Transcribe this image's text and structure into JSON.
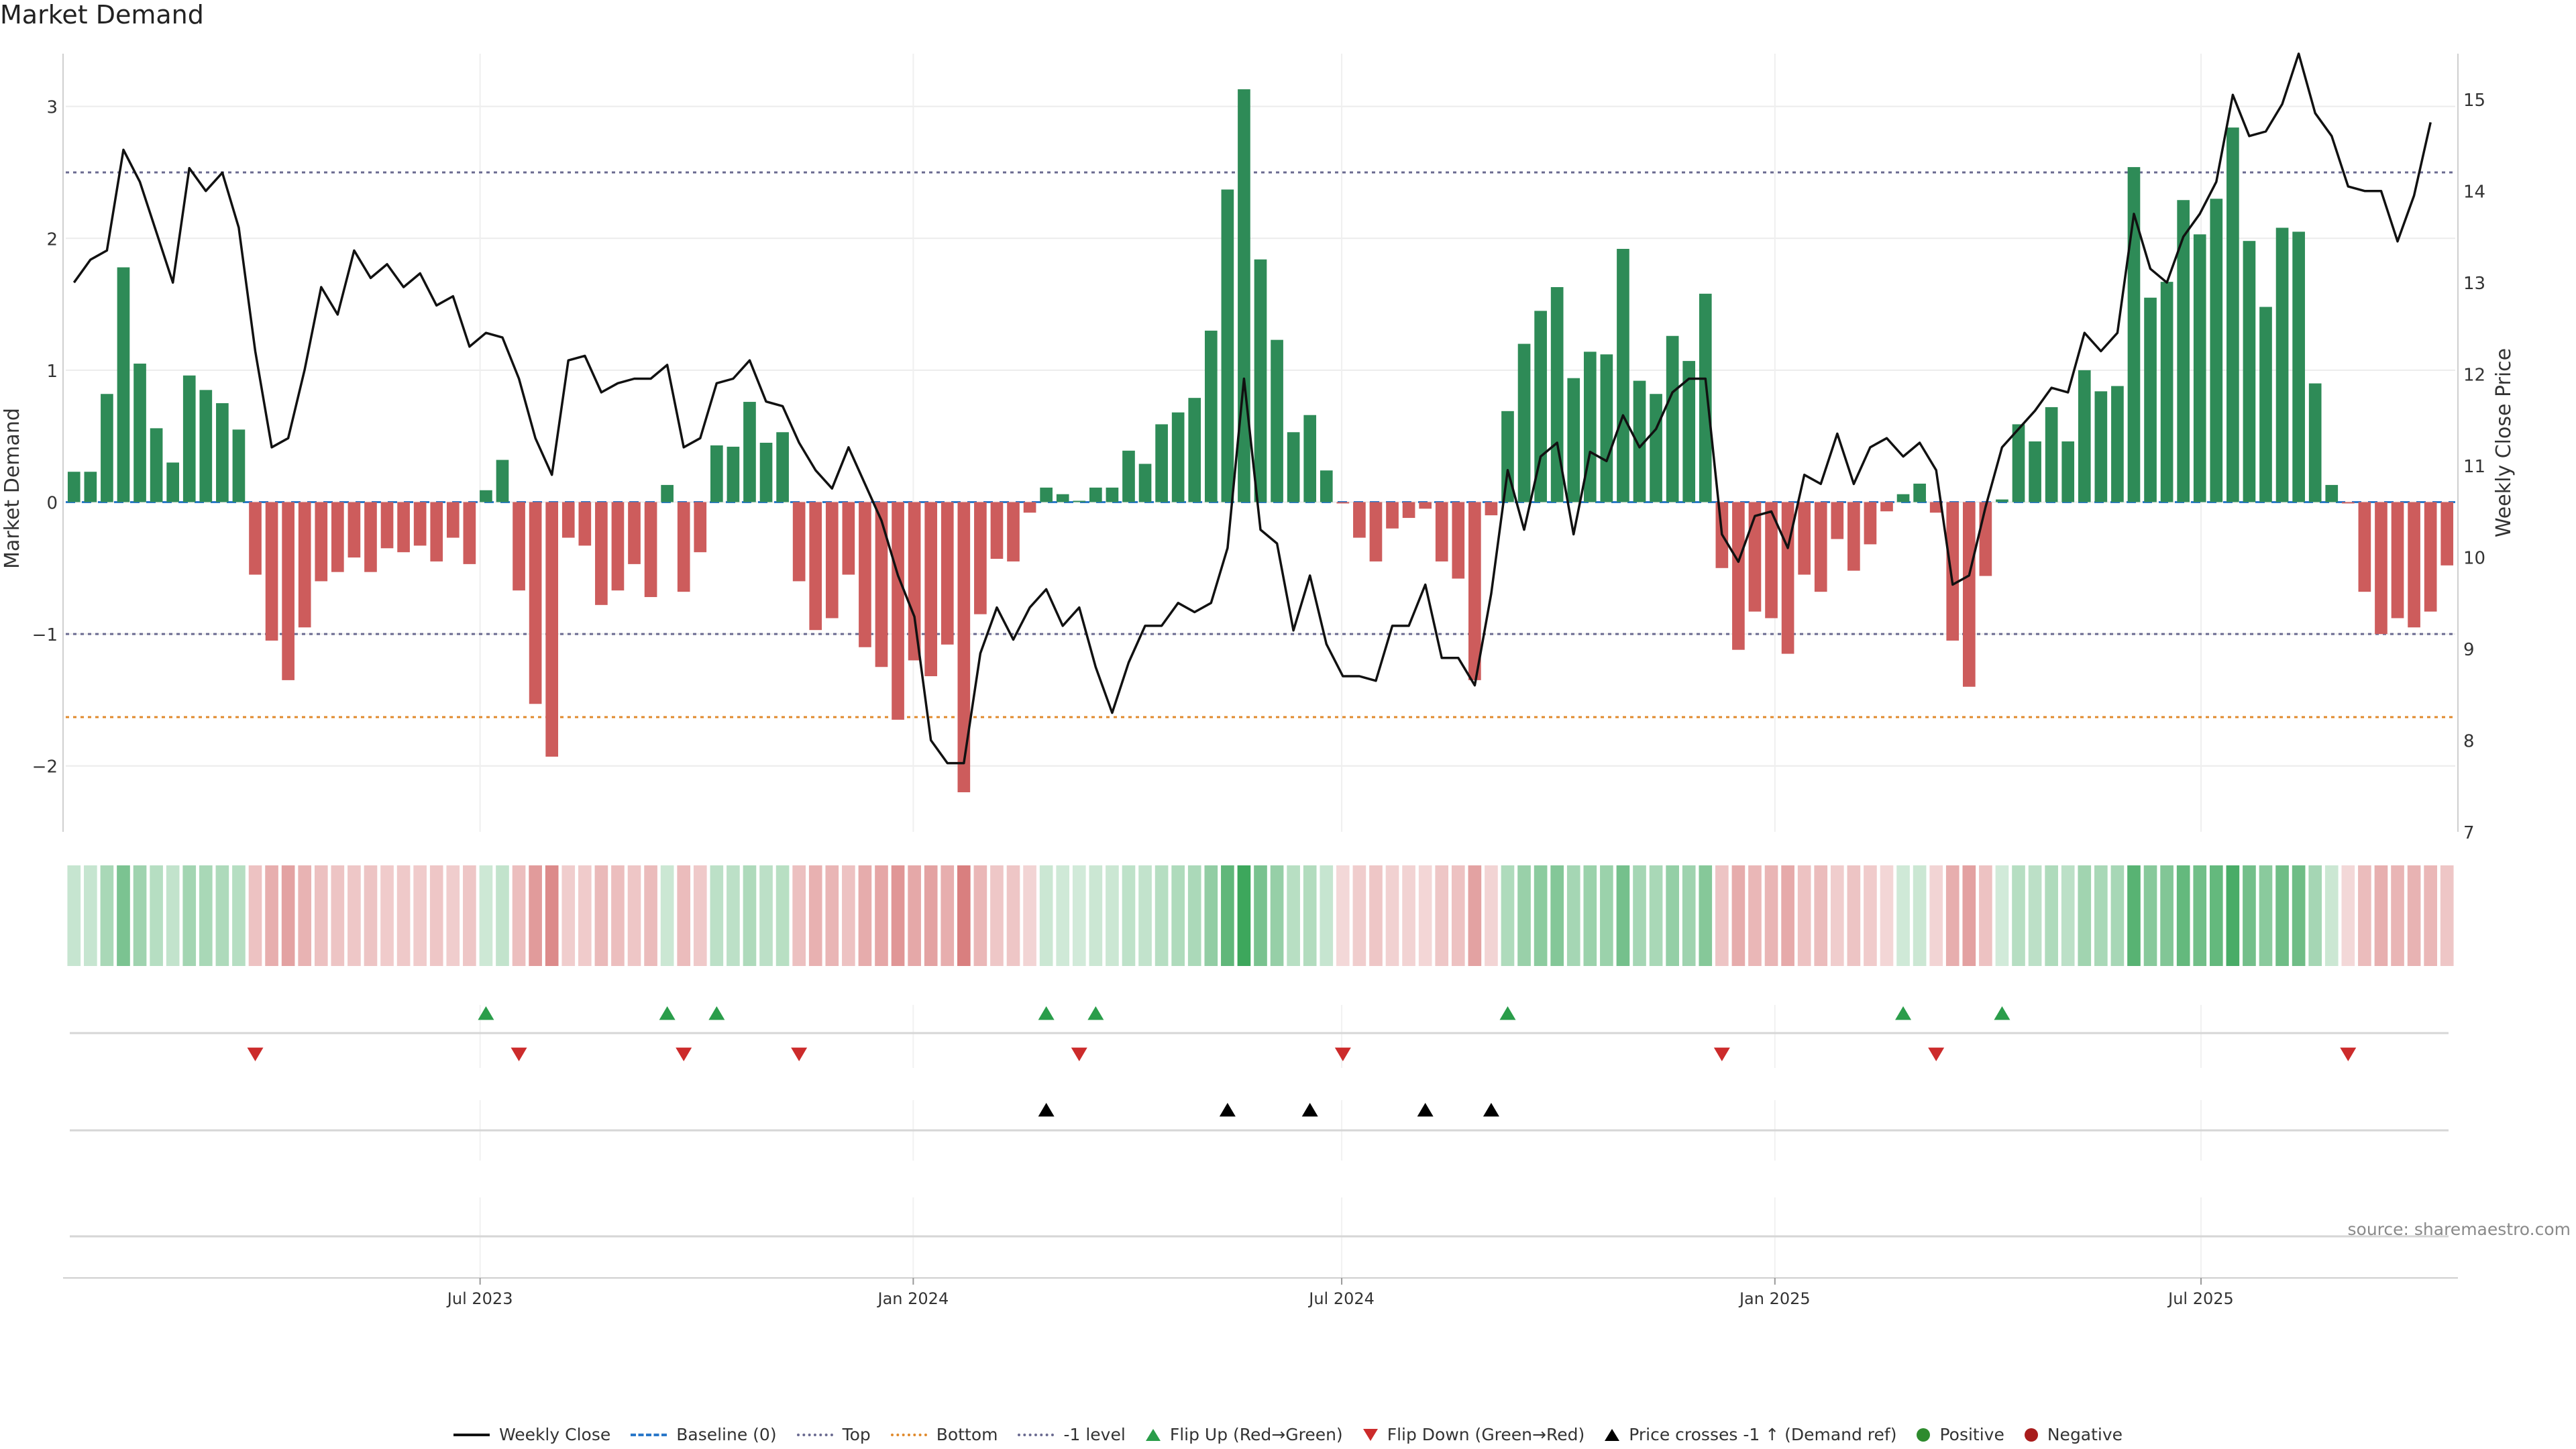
{
  "source": "source: sharemaestro.com",
  "colors": {
    "pos": "#2e8b57",
    "neg": "#cd5c5c",
    "price": "#111111",
    "top": "#6a6a90",
    "bottom": "#e08a2c",
    "baseline": "#2a78c9",
    "flip_up": "#2a9d4a",
    "flip_down": "#cc2b2b",
    "cross": "#000000",
    "positive_dot": "#2e8b2e",
    "negative_dot": "#a81c1c"
  },
  "chart_data": {
    "type": "bar",
    "title": "Market Demand",
    "ylabel": "Market Demand",
    "y2label": "Weekly Close Price",
    "ylim": [
      -2.5,
      3.4
    ],
    "y2lim": [
      7,
      15.5
    ],
    "yticks": [
      -2,
      -1,
      0,
      1,
      2,
      3
    ],
    "yticklabels": [
      "−2",
      "−1",
      "0",
      "1",
      "2",
      "3"
    ],
    "y2ticks": [
      7,
      8,
      9,
      10,
      11,
      12,
      13,
      14,
      15
    ],
    "x_start": "2023-01-06",
    "x_step_days": 7,
    "xticks": [
      {
        "date": "2023-07-01",
        "label": "Jul 2023"
      },
      {
        "date": "2024-01-01",
        "label": "Jan 2024"
      },
      {
        "date": "2024-07-01",
        "label": "Jul 2024"
      },
      {
        "date": "2025-01-01",
        "label": "Jan 2025"
      },
      {
        "date": "2025-07-01",
        "label": "Jul 2025"
      }
    ],
    "levels": {
      "top": 2.5,
      "bottom": -1.63,
      "minus_one": -1.0,
      "baseline": 0
    },
    "series": [
      {
        "name": "Market Demand",
        "values": [
          0.23,
          0.23,
          0.82,
          1.78,
          1.05,
          0.56,
          0.3,
          0.96,
          0.85,
          0.75,
          0.55,
          -0.55,
          -1.05,
          -1.35,
          -0.95,
          -0.6,
          -0.53,
          -0.42,
          -0.53,
          -0.35,
          -0.38,
          -0.33,
          -0.45,
          -0.27,
          -0.47,
          0.09,
          0.32,
          -0.67,
          -1.53,
          -1.93,
          -0.27,
          -0.33,
          -0.78,
          -0.67,
          -0.47,
          -0.72,
          0.13,
          -0.68,
          -0.38,
          0.43,
          0.42,
          0.76,
          0.45,
          0.53,
          -0.6,
          -0.97,
          -0.88,
          -0.55,
          -1.1,
          -1.25,
          -1.65,
          -1.2,
          -1.32,
          -1.08,
          -2.2,
          -0.85,
          -0.43,
          -0.45,
          -0.08,
          0.11,
          0.06,
          0.01,
          0.11,
          0.11,
          0.39,
          0.29,
          0.59,
          0.68,
          0.79,
          1.3,
          2.37,
          3.13,
          1.84,
          1.23,
          0.53,
          0.66,
          0.24,
          -0.01,
          -0.27,
          -0.45,
          -0.2,
          -0.12,
          -0.05,
          -0.45,
          -0.58,
          -1.35,
          -0.1,
          0.69,
          1.2,
          1.45,
          1.63,
          0.94,
          1.14,
          1.12,
          1.92,
          0.92,
          0.82,
          1.26,
          1.07,
          1.58,
          -0.5,
          -1.12,
          -0.83,
          -0.88,
          -1.15,
          -0.55,
          -0.68,
          -0.28,
          -0.52,
          -0.32,
          -0.07,
          0.06,
          0.14,
          -0.08,
          -1.05,
          -1.4,
          -0.56,
          0.02,
          0.59,
          0.46,
          0.72,
          0.46,
          1.0,
          0.84,
          0.88,
          2.54,
          1.55,
          1.67,
          2.29,
          2.03,
          2.3,
          2.84,
          1.98,
          1.48,
          2.08,
          2.05,
          0.9,
          0.13,
          -0.01,
          -0.68,
          -1.0,
          -0.88,
          -0.95,
          -0.83,
          -0.48
        ]
      },
      {
        "name": "Weekly Close",
        "values": [
          13.0,
          13.25,
          13.35,
          14.45,
          14.1,
          13.55,
          13.0,
          14.25,
          14.0,
          14.2,
          13.6,
          12.25,
          11.2,
          11.3,
          12.05,
          12.95,
          12.65,
          13.35,
          13.05,
          13.2,
          12.95,
          13.1,
          12.75,
          12.85,
          12.3,
          12.45,
          12.4,
          11.95,
          11.3,
          10.9,
          12.15,
          12.2,
          11.8,
          11.9,
          11.95,
          11.95,
          12.1,
          11.2,
          11.3,
          11.9,
          11.95,
          12.15,
          11.7,
          11.65,
          11.25,
          10.95,
          10.75,
          11.2,
          10.8,
          10.4,
          9.8,
          9.35,
          8.0,
          7.75,
          7.75,
          8.95,
          9.45,
          9.1,
          9.45,
          9.65,
          9.25,
          9.45,
          8.8,
          8.3,
          8.85,
          9.25,
          9.25,
          9.5,
          9.4,
          9.5,
          10.1,
          11.95,
          10.3,
          10.15,
          9.2,
          9.8,
          9.05,
          8.7,
          8.7,
          8.65,
          9.25,
          9.25,
          9.7,
          8.9,
          8.9,
          8.6,
          9.6,
          10.95,
          10.3,
          11.1,
          11.25,
          10.25,
          11.15,
          11.05,
          11.55,
          11.2,
          11.4,
          11.8,
          11.95,
          11.95,
          10.25,
          9.95,
          10.45,
          10.5,
          10.1,
          10.9,
          10.8,
          11.35,
          10.8,
          11.2,
          11.3,
          11.1,
          11.25,
          10.95,
          9.7,
          9.8,
          10.55,
          11.2,
          11.4,
          11.6,
          11.85,
          11.8,
          12.45,
          12.25,
          12.45,
          13.75,
          13.15,
          13.0,
          13.5,
          13.75,
          14.1,
          15.05,
          14.6,
          14.65,
          14.95,
          15.5,
          14.85,
          14.6,
          14.05,
          14.0,
          14.0,
          13.45,
          13.95,
          14.75
        ]
      }
    ],
    "heat_strip_note": "strip color encodes demand sign and magnitude",
    "flip_up_weeks": [
      25,
      36,
      39,
      59,
      62,
      87,
      111,
      117
    ],
    "flip_down_weeks": [
      11,
      27,
      37,
      44,
      61,
      77,
      100,
      113,
      138
    ],
    "cross_up_weeks": [
      59,
      70,
      75,
      82,
      86
    ]
  },
  "legend": [
    {
      "label": "Weekly Close",
      "kind": "solid",
      "color": "#111111"
    },
    {
      "label": "Baseline (0)",
      "kind": "dashed",
      "color": "#2a78c9"
    },
    {
      "label": "Top",
      "kind": "dotted",
      "color": "#6a6a90"
    },
    {
      "label": "Bottom",
      "kind": "dotted",
      "color": "#e08a2c"
    },
    {
      "label": "-1 level",
      "kind": "dotted",
      "color": "#6a6a90"
    },
    {
      "label": "Flip Up (Red→Green)",
      "kind": "tri-up",
      "color": "#2a9d4a"
    },
    {
      "label": "Flip Down (Green→Red)",
      "kind": "tri-down",
      "color": "#cc2b2b"
    },
    {
      "label": "Price crosses -1 ↑ (Demand ref)",
      "kind": "tri-up",
      "color": "#000000"
    },
    {
      "label": "Positive",
      "kind": "dot",
      "color": "#2e8b2e"
    },
    {
      "label": "Negative",
      "kind": "dot",
      "color": "#a81c1c"
    }
  ]
}
